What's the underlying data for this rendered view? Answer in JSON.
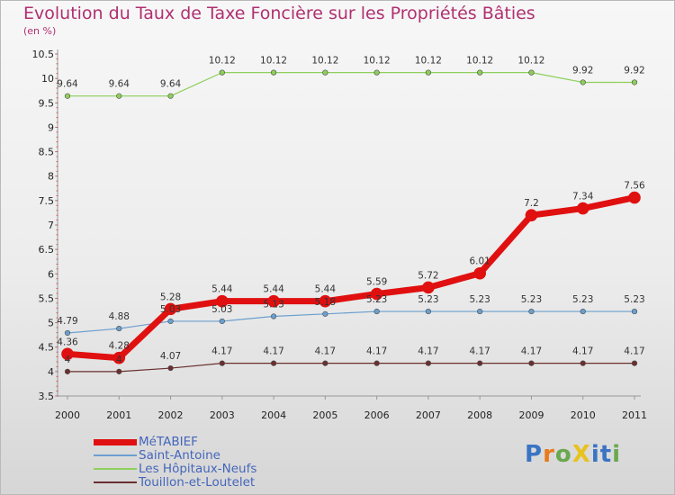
{
  "title": "Evolution du Taux de Taxe Foncière sur les Propriétés Bâties",
  "unit_label": "(en %)",
  "logo": {
    "text": "ProXiti",
    "colors": [
      "#3a74c4",
      "#e87b1e",
      "#6aa84f",
      "#e8c21e",
      "#3a74c4",
      "#3a74c4",
      "#6aa84f"
    ]
  },
  "chart_data": {
    "type": "line",
    "x": [
      "2000",
      "2001",
      "2002",
      "2003",
      "2004",
      "2005",
      "2006",
      "2007",
      "2008",
      "2009",
      "2010",
      "2011"
    ],
    "ylim": [
      3.5,
      10.5
    ],
    "yticks": [
      "3.5",
      "4",
      "4.5",
      "5",
      "5.5",
      "6",
      "6.5",
      "7",
      "7.5",
      "8",
      "8.5",
      "9",
      "9.5",
      "10",
      "10.5"
    ],
    "grid": false,
    "legend_position": "bottom-left",
    "series": [
      {
        "name": "Les Hôpitaux-Neufs",
        "color": "#8ccf5a",
        "width": 1.2,
        "marker": 2.8,
        "values": [
          9.64,
          9.64,
          9.64,
          10.12,
          10.12,
          10.12,
          10.12,
          10.12,
          10.12,
          10.12,
          9.92,
          9.92
        ],
        "labels": [
          "9.64",
          "9.64",
          "9.64",
          "10.12",
          "10.12",
          "10.12",
          "10.12",
          "10.12",
          "10.12",
          "10.12",
          "9.92",
          "9.92"
        ]
      },
      {
        "name": "Saint-Antoine",
        "color": "#6b9fcf",
        "width": 1.2,
        "marker": 2.8,
        "values": [
          4.79,
          4.88,
          5.03,
          5.03,
          5.13,
          5.18,
          5.23,
          5.23,
          5.23,
          5.23,
          5.23,
          5.23
        ],
        "labels": [
          "4.79",
          "4.88",
          "5.03",
          "5.03",
          "5.13",
          "5.18",
          "5.23",
          "5.23",
          "5.23",
          "5.23",
          "5.23",
          "5.23"
        ]
      },
      {
        "name": "Touillon-et-Loutelet",
        "color": "#6b2f2f",
        "width": 1.2,
        "marker": 2.8,
        "values": [
          4,
          4,
          4.07,
          4.17,
          4.17,
          4.17,
          4.17,
          4.17,
          4.17,
          4.17,
          4.17,
          4.17
        ],
        "labels": [
          "4",
          "4",
          "4.07",
          "4.17",
          "4.17",
          "4.17",
          "4.17",
          "4.17",
          "4.17",
          "4.17",
          "4.17",
          "4.17"
        ]
      },
      {
        "name": "MéTABIEF",
        "color": "#e01010",
        "width": 7,
        "marker": 6.5,
        "values": [
          4.36,
          4.28,
          5.28,
          5.44,
          5.44,
          5.44,
          5.59,
          5.72,
          6.01,
          7.2,
          7.34,
          7.56
        ],
        "labels": [
          "4.36",
          "4.28",
          "5.28",
          "5.44",
          "5.44",
          "5.44",
          "5.59",
          "5.72",
          "6.01",
          "7.2",
          "7.34",
          "7.56"
        ]
      }
    ],
    "legend_order": [
      "MéTABIEF",
      "Saint-Antoine",
      "Les Hôpitaux-Neufs",
      "Touillon-et-Loutelet"
    ]
  }
}
